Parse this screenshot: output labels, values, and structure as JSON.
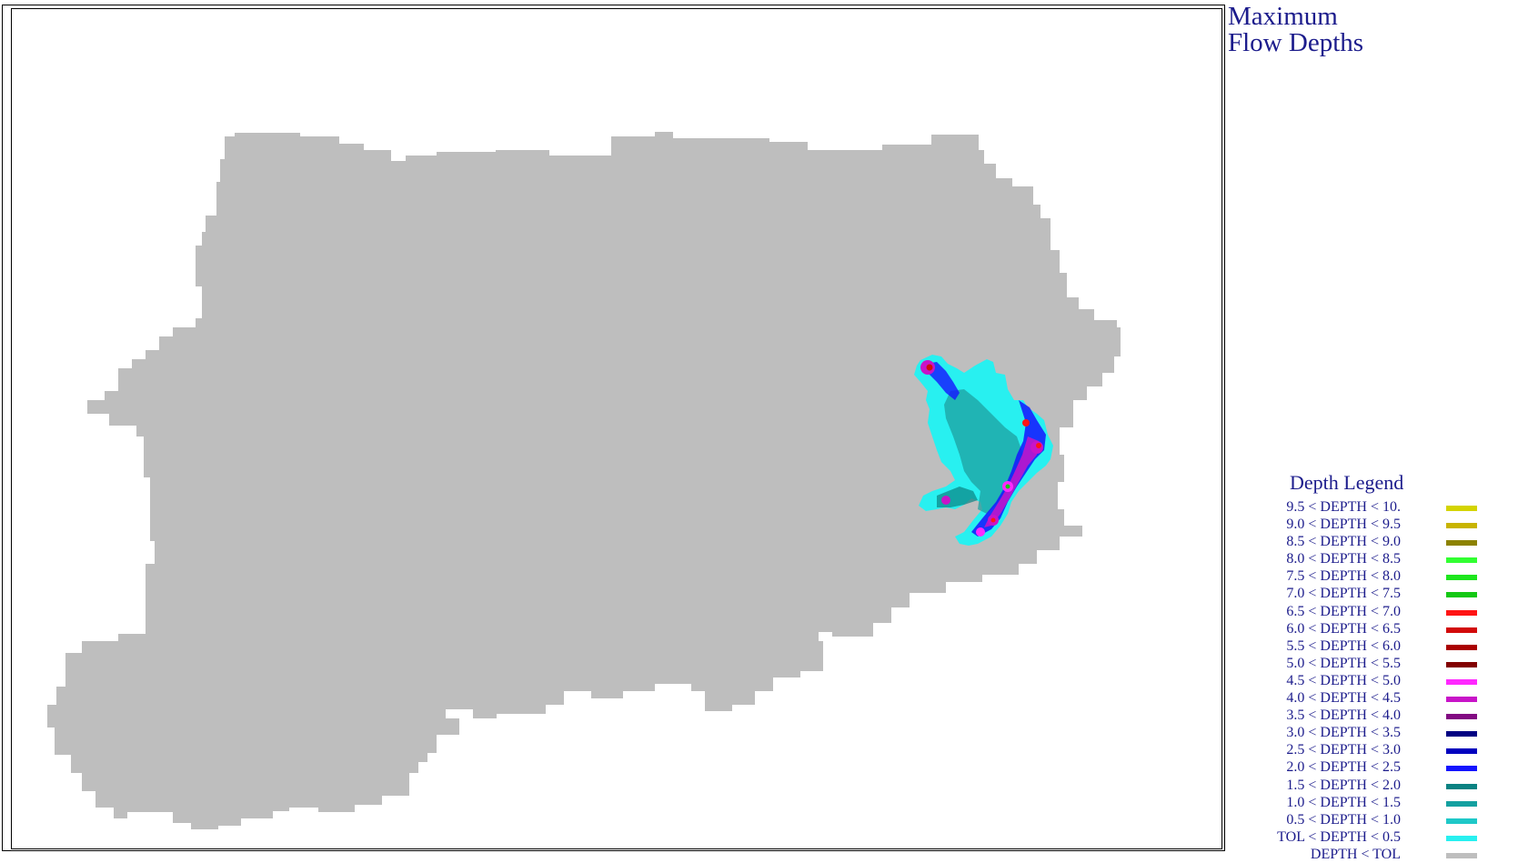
{
  "title": {
    "line1": "Maximum",
    "line2": "Flow Depths"
  },
  "legend": {
    "title": "Depth Legend",
    "items": [
      {
        "label": "9.5 < DEPTH < 10.",
        "color": "#d4d400"
      },
      {
        "label": "9.0 < DEPTH < 9.5",
        "color": "#c8b400"
      },
      {
        "label": "8.5 < DEPTH < 9.0",
        "color": "#8c8200"
      },
      {
        "label": "8.0 < DEPTH < 8.5",
        "color": "#32ff32"
      },
      {
        "label": "7.5 < DEPTH < 8.0",
        "color": "#1ee61e"
      },
      {
        "label": "7.0 < DEPTH < 7.5",
        "color": "#14c814"
      },
      {
        "label": "6.5 < DEPTH < 7.0",
        "color": "#ff1414"
      },
      {
        "label": "6.0 < DEPTH < 6.5",
        "color": "#d20a0a"
      },
      {
        "label": "5.5 < DEPTH < 6.0",
        "color": "#aa0000"
      },
      {
        "label": "5.0 < DEPTH < 5.5",
        "color": "#820000"
      },
      {
        "label": "4.5 < DEPTH < 5.0",
        "color": "#ff28ff"
      },
      {
        "label": "4.0 < DEPTH < 4.5",
        "color": "#c814c8"
      },
      {
        "label": "3.5 < DEPTH < 4.0",
        "color": "#820a82"
      },
      {
        "label": "3.0 < DEPTH < 3.5",
        "color": "#000082"
      },
      {
        "label": "2.5 < DEPTH < 3.0",
        "color": "#0000be"
      },
      {
        "label": "2.0 < DEPTH < 2.5",
        "color": "#1414ff"
      },
      {
        "label": "1.5 < DEPTH < 2.0",
        "color": "#0a8282"
      },
      {
        "label": "1.0 < DEPTH < 1.5",
        "color": "#14a0a0"
      },
      {
        "label": "0.5 < DEPTH < 1.0",
        "color": "#1ec8c8"
      },
      {
        "label": "TOL < DEPTH < 0.5",
        "color": "#28f0f0"
      },
      {
        "label": "DEPTH < TOL",
        "color": "#bebebe"
      }
    ]
  }
}
